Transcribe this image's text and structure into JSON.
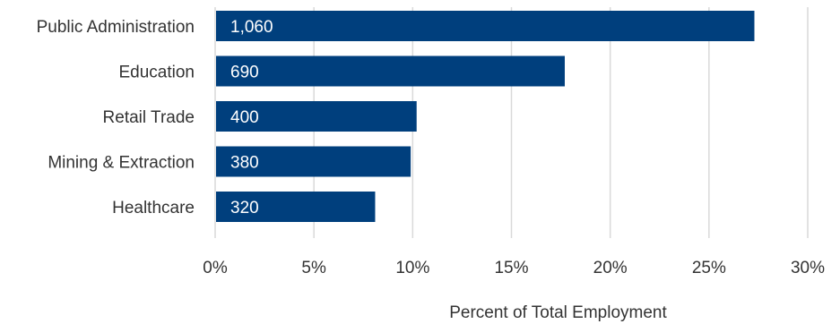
{
  "chart_data": {
    "type": "bar",
    "orientation": "horizontal",
    "categories": [
      "Public Administration",
      "Education",
      "Retail Trade",
      "Mining & Extraction",
      "Healthcare"
    ],
    "values": [
      27.3,
      17.7,
      10.2,
      9.9,
      8.1
    ],
    "data_labels": [
      "1,060",
      "690",
      "400",
      "380",
      "320"
    ],
    "xlabel": "Percent of Total Employment",
    "ylabel": "",
    "xlim": [
      0,
      30
    ],
    "x_ticks": [
      0,
      5,
      10,
      15,
      20,
      25,
      30
    ],
    "x_tick_labels": [
      "0%",
      "5%",
      "10%",
      "15%",
      "20%",
      "25%",
      "30%"
    ],
    "grid": "vertical",
    "legend": "none",
    "bar_color": "#003f7d"
  }
}
